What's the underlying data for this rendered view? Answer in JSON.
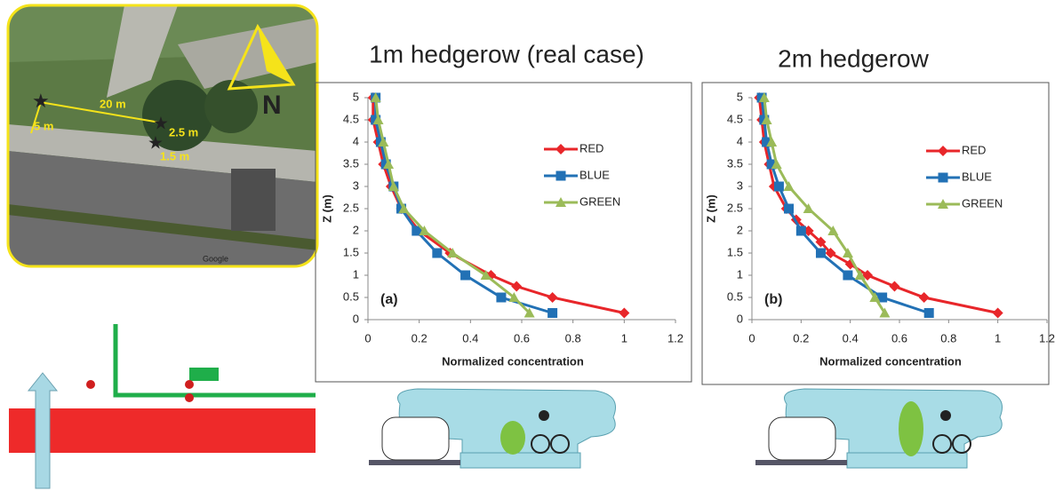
{
  "map": {
    "labels": [
      "20 m",
      "5 m",
      "2.5 m",
      "1.5 m",
      "N",
      "Google"
    ]
  },
  "chart_data": [
    {
      "type": "line",
      "title": "1m hedgerow (real case)",
      "panel_label": "(a)",
      "x_label": "Normalized concentration",
      "y_label": "Z (m)",
      "xlim": [
        0,
        1.2
      ],
      "ylim": [
        0,
        5
      ],
      "xticks": [
        0,
        0.2,
        0.4,
        0.6,
        0.8,
        1,
        1.2
      ],
      "yticks": [
        0,
        0.5,
        1,
        1.5,
        2,
        2.5,
        3,
        3.5,
        4,
        4.5,
        5
      ],
      "legend": "right",
      "series": [
        {
          "name": "RED",
          "color": "#e8262a",
          "marker": "diamond",
          "values": [
            1.0,
            0.72,
            0.58,
            0.48,
            0.32,
            0.2,
            0.13,
            0.09,
            0.06,
            0.04,
            0.02,
            0.02
          ],
          "heights": [
            0.15,
            0.5,
            0.75,
            1,
            1.5,
            2,
            2.5,
            3,
            3.5,
            4,
            4.5,
            5
          ]
        },
        {
          "name": "BLUE",
          "color": "#2271b5",
          "marker": "square",
          "values": [
            0.72,
            0.52,
            0.38,
            0.27,
            0.19,
            0.13,
            0.1,
            0.07,
            0.05,
            0.03,
            0.03
          ],
          "heights": [
            0.15,
            0.5,
            1,
            1.5,
            2,
            2.5,
            3,
            3.5,
            4,
            4.5,
            5
          ]
        },
        {
          "name": "GREEN",
          "color": "#9bbb59",
          "marker": "triangle",
          "values": [
            0.63,
            0.57,
            0.46,
            0.33,
            0.22,
            0.14,
            0.1,
            0.08,
            0.06,
            0.04,
            0.03
          ],
          "heights": [
            0.15,
            0.5,
            1,
            1.5,
            2,
            2.5,
            3,
            3.5,
            4,
            4.5,
            5
          ]
        }
      ]
    },
    {
      "type": "line",
      "title": "2m hedgerow",
      "panel_label": "(b)",
      "x_label": "Normalized concentration",
      "y_label": "Z (m)",
      "xlim": [
        0,
        1.2
      ],
      "ylim": [
        0,
        5
      ],
      "xticks": [
        0,
        0.2,
        0.4,
        0.6,
        0.8,
        1,
        1.2
      ],
      "yticks": [
        0,
        0.5,
        1,
        1.5,
        2,
        2.5,
        3,
        3.5,
        4,
        4.5,
        5
      ],
      "legend": "right",
      "series": [
        {
          "name": "RED",
          "color": "#e8262a",
          "marker": "diamond",
          "values": [
            1.0,
            0.7,
            0.58,
            0.47,
            0.4,
            0.32,
            0.28,
            0.23,
            0.18,
            0.14,
            0.09,
            0.07,
            0.05,
            0.04,
            0.03
          ],
          "heights": [
            0.15,
            0.5,
            0.75,
            1,
            1.25,
            1.5,
            1.75,
            2,
            2.25,
            2.5,
            3,
            3.5,
            4,
            4.5,
            5
          ]
        },
        {
          "name": "BLUE",
          "color": "#2271b5",
          "marker": "square",
          "values": [
            0.72,
            0.53,
            0.39,
            0.28,
            0.2,
            0.15,
            0.11,
            0.08,
            0.06,
            0.05,
            0.04
          ],
          "heights": [
            0.15,
            0.5,
            1,
            1.5,
            2,
            2.5,
            3,
            3.5,
            4,
            4.5,
            5
          ]
        },
        {
          "name": "GREEN",
          "color": "#9bbb59",
          "marker": "triangle",
          "values": [
            0.54,
            0.5,
            0.44,
            0.39,
            0.33,
            0.23,
            0.15,
            0.1,
            0.08,
            0.06,
            0.05
          ],
          "heights": [
            0.15,
            0.5,
            1,
            1.5,
            2,
            2.5,
            3,
            3.5,
            4,
            4.5,
            5
          ]
        }
      ]
    }
  ]
}
